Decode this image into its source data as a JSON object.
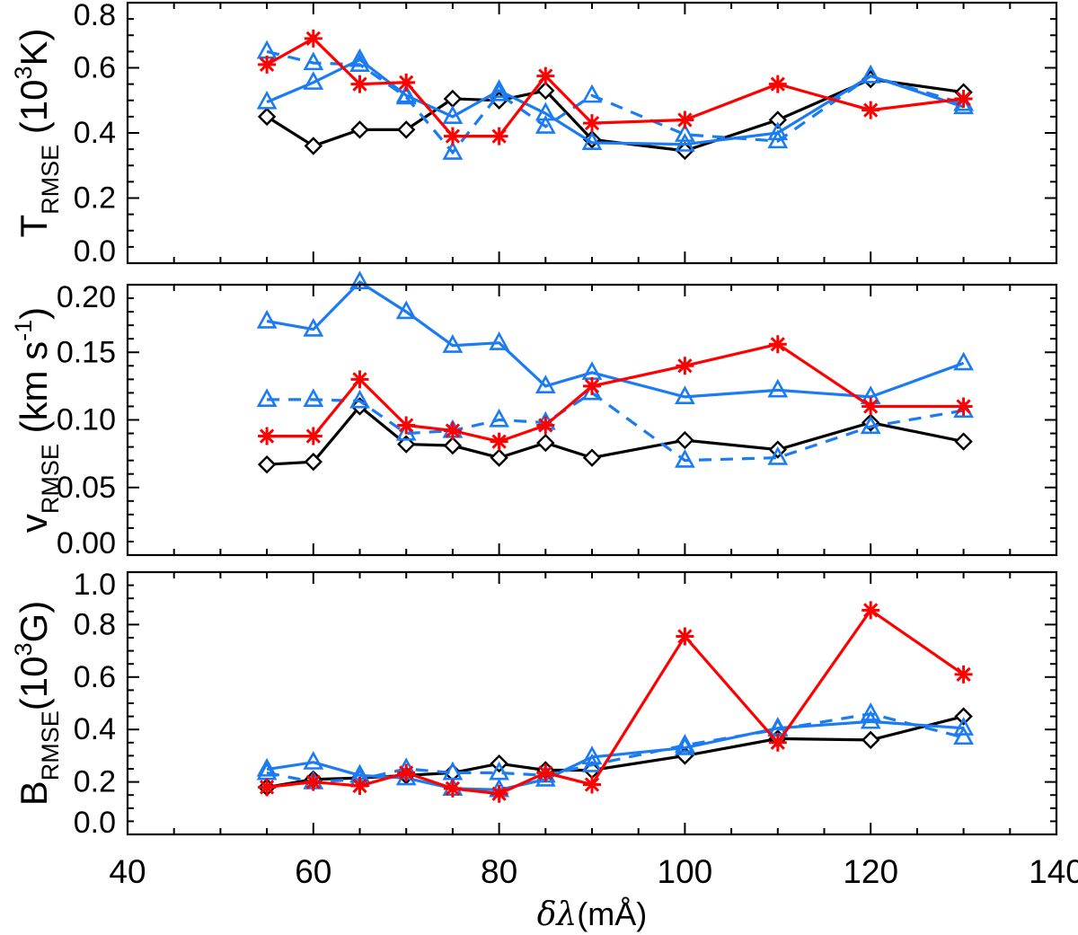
{
  "chart_data": {
    "type": "line",
    "title": "",
    "xlabel_parts": [
      {
        "t": "δλ",
        "style": "italic"
      },
      {
        "t": "(mÅ)",
        "style": "normal"
      }
    ],
    "x_axis": {
      "min": 40,
      "max": 140,
      "major_ticks": [
        40,
        60,
        80,
        100,
        120,
        140
      ],
      "tick_labels": [
        "40",
        "60",
        "80",
        "100",
        "120",
        "140"
      ],
      "minor_step": 5
    },
    "x_values": [
      55,
      60,
      65,
      70,
      75,
      80,
      85,
      90,
      100,
      110,
      120,
      130
    ],
    "colors": {
      "black": "#000000",
      "red": "#ff0000",
      "blue": "#1b7cf2"
    },
    "panels": [
      {
        "id": "T-RMSE",
        "ylabel_parts": [
          {
            "t": "T",
            "style": "normal"
          },
          {
            "t": "RMSE",
            "style": "sub"
          },
          {
            "t": " (10",
            "style": "normal"
          },
          {
            "t": "3",
            "style": "sup"
          },
          {
            "t": "K)",
            "style": "normal"
          }
        ],
        "ylim": [
          0,
          0.8
        ],
        "ytick_values": [
          0.0,
          0.2,
          0.4,
          0.6,
          0.8
        ],
        "ytick_labels": [
          "0.0",
          "0.2",
          "0.4",
          "0.6",
          "0.8"
        ],
        "minor_step": 0.05,
        "series": [
          {
            "name": "black-diamond-solid",
            "color": "black",
            "marker": "diamond",
            "dash": false,
            "values": [
              0.45,
              0.36,
              0.41,
              0.41,
              0.505,
              0.5,
              0.53,
              0.38,
              0.345,
              0.44,
              0.565,
              0.525
            ]
          },
          {
            "name": "blue-triangle-solid",
            "color": "blue",
            "marker": "triangle",
            "dash": false,
            "values": [
              0.495,
              0.555,
              0.625,
              0.515,
              0.45,
              0.53,
              0.46,
              0.37,
              0.365,
              0.4,
              0.575,
              0.48
            ]
          },
          {
            "name": "blue-triangle-dashed",
            "color": "blue",
            "marker": "triangle",
            "dash": true,
            "values": [
              0.65,
              0.615,
              0.61,
              0.51,
              0.34,
              0.52,
              0.42,
              0.515,
              0.395,
              0.375,
              0.575,
              0.49
            ]
          },
          {
            "name": "red-asterisk-solid",
            "color": "red",
            "marker": "asterisk",
            "dash": false,
            "values": [
              0.61,
              0.69,
              0.55,
              0.555,
              0.39,
              0.39,
              0.575,
              0.43,
              0.44,
              0.55,
              0.47,
              0.505
            ]
          }
        ]
      },
      {
        "id": "v-RMSE",
        "ylabel_parts": [
          {
            "t": "v",
            "style": "normal"
          },
          {
            "t": "RMSE",
            "style": "sub"
          },
          {
            "t": " (km s",
            "style": "normal"
          },
          {
            "t": "-1",
            "style": "sup"
          },
          {
            "t": ")",
            "style": "normal"
          }
        ],
        "ylim": [
          0,
          0.2
        ],
        "ytick_values": [
          0.0,
          0.05,
          0.1,
          0.15,
          0.2
        ],
        "ytick_labels": [
          "0.00",
          "0.05",
          "0.10",
          "0.15",
          "0.20"
        ],
        "minor_step": 0.01,
        "series": [
          {
            "name": "black-diamond-solid",
            "color": "black",
            "marker": "diamond",
            "dash": false,
            "values": [
              0.067,
              0.069,
              0.11,
              0.082,
              0.081,
              0.072,
              0.083,
              0.072,
              0.085,
              0.078,
              0.098,
              0.084
            ]
          },
          {
            "name": "blue-triangle-solid",
            "color": "blue",
            "marker": "triangle",
            "dash": false,
            "values": [
              0.173,
              0.167,
              0.202,
              0.18,
              0.155,
              0.157,
              0.125,
              0.135,
              0.117,
              0.122,
              0.117,
              0.142
            ]
          },
          {
            "name": "blue-triangle-dashed",
            "color": "blue",
            "marker": "triangle",
            "dash": true,
            "values": [
              0.115,
              0.115,
              0.114,
              0.09,
              0.092,
              0.1,
              0.098,
              0.12,
              0.07,
              0.072,
              0.095,
              0.107
            ]
          },
          {
            "name": "red-asterisk-solid",
            "color": "red",
            "marker": "asterisk",
            "dash": false,
            "values": [
              0.088,
              0.088,
              0.13,
              0.096,
              0.092,
              0.084,
              0.096,
              0.125,
              0.14,
              0.156,
              0.11,
              0.11
            ]
          }
        ]
      },
      {
        "id": "B-RMSE",
        "ylabel_parts": [
          {
            "t": "B",
            "style": "normal"
          },
          {
            "t": "RMSE",
            "style": "sub"
          },
          {
            "t": "(10",
            "style": "normal"
          },
          {
            "t": "3",
            "style": "sup"
          },
          {
            "t": "G)",
            "style": "normal"
          }
        ],
        "ylim": [
          0,
          1.0
        ],
        "ytick_values": [
          0.0,
          0.2,
          0.4,
          0.6,
          0.8,
          1.0
        ],
        "ytick_labels": [
          "0.0",
          "0.2",
          "0.4",
          "0.6",
          "0.8",
          "1.0"
        ],
        "minor_step": 0.05,
        "series": [
          {
            "name": "black-diamond-solid",
            "color": "black",
            "marker": "diamond",
            "dash": false,
            "values": [
              0.18,
              0.21,
              0.215,
              0.225,
              0.235,
              0.27,
              0.245,
              0.245,
              0.3,
              0.365,
              0.36,
              0.45
            ]
          },
          {
            "name": "blue-triangle-solid",
            "color": "blue",
            "marker": "triangle",
            "dash": false,
            "values": [
              0.248,
              0.275,
              0.225,
              0.215,
              0.175,
              0.17,
              0.21,
              0.295,
              0.33,
              0.405,
              0.43,
              0.405
            ]
          },
          {
            "name": "blue-triangle-dashed",
            "color": "blue",
            "marker": "triangle",
            "dash": true,
            "values": [
              0.235,
              0.2,
              0.21,
              0.25,
              0.235,
              0.235,
              0.225,
              0.265,
              0.34,
              0.4,
              0.46,
              0.37
            ]
          },
          {
            "name": "red-asterisk-solid",
            "color": "red",
            "marker": "asterisk",
            "dash": false,
            "values": [
              0.18,
              0.2,
              0.185,
              0.235,
              0.175,
              0.155,
              0.235,
              0.19,
              0.755,
              0.35,
              0.855,
              0.61
            ]
          }
        ]
      }
    ],
    "layout": {
      "legend": "none",
      "grid": false
    }
  }
}
